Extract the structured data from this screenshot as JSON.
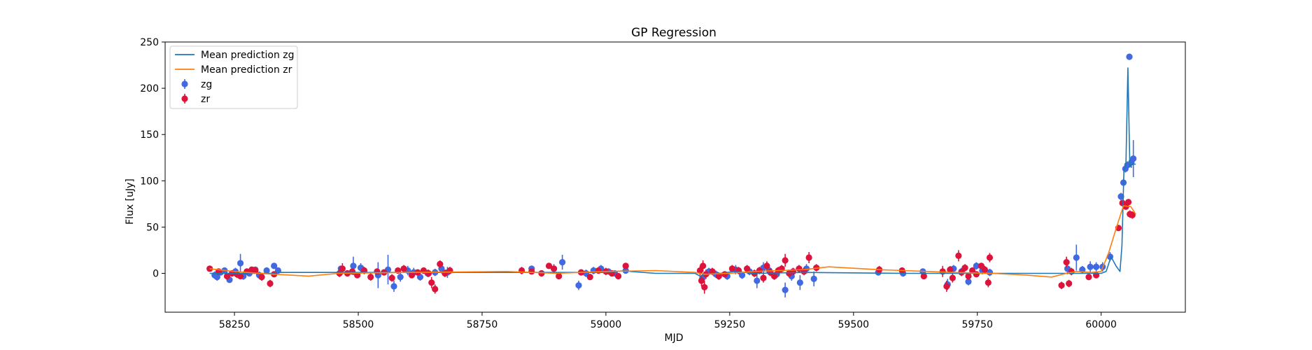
{
  "chart_data": {
    "type": "scatter",
    "title": "GP Regression",
    "xlabel": "MJD",
    "ylabel": "Flux [uJy]",
    "xlim": [
      58110,
      60170
    ],
    "ylim": [
      -42,
      250
    ],
    "xticks": [
      58250,
      58500,
      58750,
      59000,
      59250,
      59500,
      59750,
      60000
    ],
    "yticks": [
      0,
      50,
      100,
      150,
      200,
      250
    ],
    "grid": false,
    "legend_position": "top-left",
    "colors": {
      "zg_points": "#4169e1",
      "zr_points": "#dc143c",
      "zg_line": "#1f77b4",
      "zr_line": "#ff7f0e"
    },
    "legend": [
      {
        "label": "Mean prediction zg",
        "kind": "line",
        "color": "#1f77b4"
      },
      {
        "label": "Mean prediction zr",
        "kind": "line",
        "color": "#ff7f0e"
      },
      {
        "label": "zg",
        "kind": "marker",
        "color": "#4169e1"
      },
      {
        "label": "zr",
        "kind": "marker",
        "color": "#dc143c"
      }
    ],
    "series": [
      {
        "name": "Mean prediction zg",
        "kind": "line",
        "color": "#1f77b4",
        "x": [
          58200,
          58330,
          58335,
          58460,
          59000,
          59040,
          59050,
          59100,
          59180,
          59190,
          59200,
          59230,
          59260,
          59300,
          59400,
          59600,
          59900,
          59950,
          60000,
          60010,
          60020,
          60030,
          60038,
          60042,
          60046,
          60050,
          60054,
          60058,
          60062,
          60070
        ],
        "y": [
          0,
          0,
          1,
          1,
          1,
          3,
          2,
          0,
          0,
          -3,
          -1,
          0,
          2,
          0,
          1,
          0,
          0,
          0,
          0,
          2,
          18,
          8,
          2,
          30,
          110,
          118,
          222,
          115,
          118,
          118
        ]
      },
      {
        "name": "Mean prediction zr",
        "kind": "line",
        "color": "#ff7f0e",
        "x": [
          58200,
          58250,
          58300,
          58330,
          58400,
          58460,
          58600,
          58800,
          58900,
          59000,
          59100,
          59180,
          59200,
          59250,
          59300,
          59400,
          59450,
          59550,
          59650,
          59700,
          59780,
          59850,
          59900,
          59930,
          59950,
          59980,
          60000,
          60015,
          60030,
          60045,
          60060,
          60070
        ],
        "y": [
          5,
          2,
          0,
          -1,
          -3,
          0,
          1,
          2,
          0,
          2,
          3,
          1,
          -1,
          0,
          2,
          4,
          7,
          4,
          2,
          1,
          0,
          -2,
          -4,
          0,
          2,
          1,
          2,
          22,
          48,
          73,
          72,
          64
        ]
      },
      {
        "name": "zg",
        "kind": "scatter",
        "color": "#4169e1",
        "x": [
          58210,
          58215,
          58222,
          58230,
          58240,
          58252,
          58262,
          58268,
          58280,
          58292,
          58300,
          58315,
          58330,
          58338,
          58465,
          58490,
          58505,
          58540,
          58560,
          58572,
          58585,
          58600,
          58612,
          58625,
          58640,
          58655,
          58668,
          58680,
          58850,
          58895,
          58912,
          58945,
          58960,
          58975,
          58990,
          59005,
          59018,
          59040,
          59195,
          59208,
          59222,
          59245,
          59262,
          59275,
          59290,
          59305,
          59318,
          59330,
          59345,
          59362,
          59375,
          59392,
          59405,
          59420,
          59550,
          59600,
          59640,
          59690,
          59702,
          59718,
          59732,
          59748,
          59760,
          59775,
          59932,
          59950,
          59962,
          59978,
          59990,
          60003,
          60018,
          60040,
          60045,
          60049,
          60053,
          60057,
          60061,
          60065
        ],
        "y": [
          -2,
          -4,
          1,
          3,
          -7,
          2,
          11,
          -3,
          0,
          4,
          -2,
          3,
          8,
          3,
          5,
          8,
          6,
          -2,
          4,
          -14,
          -4,
          3,
          1,
          -4,
          0,
          1,
          5,
          1,
          5,
          5,
          12,
          -13,
          0,
          3,
          5,
          2,
          0,
          3,
          -5,
          2,
          -1,
          -3,
          4,
          -2,
          2,
          -8,
          6,
          3,
          -1,
          -18,
          -3,
          -10,
          5,
          -6,
          1,
          0,
          2,
          -12,
          5,
          2,
          -9,
          8,
          3,
          1,
          5,
          17,
          4,
          7,
          7,
          7,
          18,
          83,
          98,
          113,
          117,
          234,
          120,
          124
        ],
        "yerr": [
          4,
          4,
          3,
          3,
          3,
          4,
          10,
          4,
          3,
          3,
          4,
          3,
          3,
          3,
          3,
          10,
          5,
          14,
          16,
          6,
          5,
          5,
          5,
          4,
          4,
          4,
          5,
          6,
          3,
          5,
          8,
          5,
          4,
          4,
          4,
          3,
          3,
          3,
          5,
          4,
          4,
          4,
          5,
          4,
          4,
          8,
          6,
          5,
          4,
          8,
          5,
          8,
          5,
          8,
          3,
          3,
          3,
          6,
          4,
          4,
          4,
          4,
          4,
          4,
          6,
          14,
          4,
          6,
          5,
          5,
          5,
          4,
          4,
          4,
          4,
          3,
          6,
          20
        ]
      },
      {
        "name": "zr",
        "kind": "scatter",
        "color": "#dc143c",
        "x": [
          58200,
          58218,
          58235,
          58245,
          58255,
          58262,
          58275,
          58285,
          58292,
          58305,
          58322,
          58330,
          58462,
          58468,
          58478,
          58488,
          58498,
          58512,
          58525,
          58538,
          58552,
          58568,
          58580,
          58592,
          58608,
          58620,
          58632,
          58642,
          58648,
          58655,
          58665,
          58675,
          58685,
          58830,
          58850,
          58870,
          58885,
          58895,
          58905,
          58950,
          58968,
          58985,
          59000,
          59012,
          59025,
          59040,
          59190,
          59193,
          59196,
          59199,
          59202,
          59215,
          59228,
          59240,
          59255,
          59268,
          59285,
          59300,
          59310,
          59318,
          59325,
          59332,
          59340,
          59348,
          59355,
          59362,
          59370,
          59378,
          59390,
          59400,
          59410,
          59425,
          59552,
          59598,
          59642,
          59680,
          59688,
          59695,
          59700,
          59712,
          59718,
          59725,
          59732,
          59740,
          59748,
          59758,
          59765,
          59772,
          59775,
          59920,
          59930,
          59935,
          59940,
          59975,
          59990,
          60035,
          60043,
          60050,
          60055,
          60058,
          60063
        ],
        "y": [
          5,
          2,
          -3,
          0,
          -1,
          -3,
          2,
          4,
          3,
          -4,
          -11,
          -1,
          0,
          5,
          0,
          2,
          -2,
          3,
          -4,
          2,
          1,
          -5,
          3,
          5,
          -2,
          1,
          3,
          0,
          -10,
          -17,
          10,
          0,
          3,
          3,
          2,
          0,
          8,
          5,
          -3,
          1,
          -4,
          3,
          2,
          0,
          -3,
          8,
          3,
          -8,
          8,
          -15,
          -1,
          2,
          -3,
          -1,
          5,
          3,
          5,
          0,
          3,
          -5,
          8,
          1,
          -3,
          3,
          5,
          14,
          0,
          2,
          5,
          2,
          17,
          6,
          4,
          3,
          -3,
          2,
          -14,
          4,
          -5,
          19,
          1,
          6,
          -3,
          3,
          -1,
          8,
          4,
          -10,
          17,
          -13,
          12,
          -11,
          2,
          -4,
          -2,
          49,
          76,
          72,
          77,
          64,
          63
        ],
        "yerr": [
          3,
          3,
          4,
          3,
          4,
          3,
          3,
          3,
          3,
          4,
          4,
          3,
          4,
          6,
          3,
          3,
          3,
          4,
          4,
          3,
          3,
          4,
          3,
          4,
          3,
          3,
          3,
          4,
          6,
          5,
          4,
          4,
          4,
          4,
          3,
          3,
          3,
          3,
          3,
          3,
          3,
          3,
          4,
          3,
          3,
          3,
          5,
          6,
          6,
          7,
          5,
          4,
          4,
          3,
          4,
          4,
          4,
          4,
          4,
          5,
          5,
          4,
          4,
          4,
          4,
          7,
          4,
          4,
          4,
          4,
          6,
          4,
          4,
          3,
          3,
          6,
          6,
          4,
          5,
          6,
          4,
          4,
          4,
          3,
          3,
          3,
          4,
          5,
          5,
          4,
          6,
          4,
          4,
          3,
          3,
          3,
          3,
          3,
          3,
          4,
          4
        ]
      }
    ]
  }
}
